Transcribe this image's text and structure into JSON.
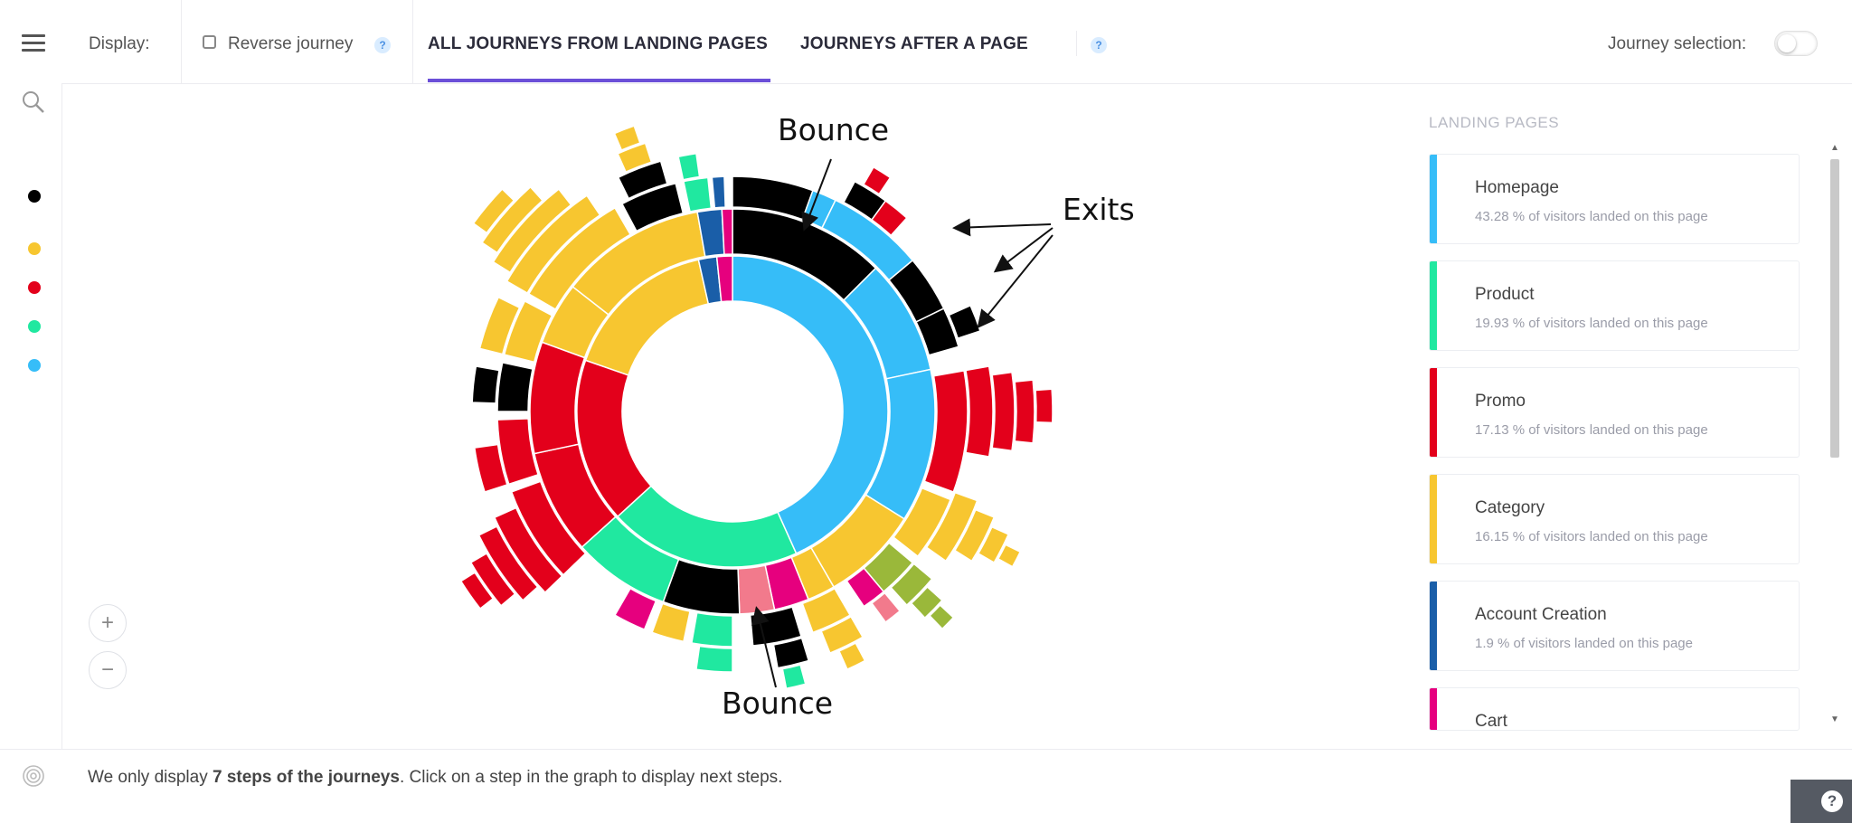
{
  "toolbar": {
    "display_label": "Display:",
    "reverse_label": "Reverse journey",
    "help_glyph": "?",
    "tabs": [
      {
        "label": "ALL JOURNEYS FROM LANDING PAGES",
        "active": true
      },
      {
        "label": "JOURNEYS AFTER A PAGE",
        "active": false
      }
    ],
    "journey_selection_label": "Journey selection:",
    "journey_selection_on": false
  },
  "sidebar": {
    "icons": [
      "menu-icon",
      "search-icon"
    ],
    "legend_dots": [
      "#000000",
      "#f7c630",
      "#e3001b",
      "#20e8a0",
      "#36bdf8"
    ]
  },
  "annotations": {
    "bounce_top": "Bounce",
    "bounce_bottom": "Bounce",
    "exits": "Exits"
  },
  "zoom": {
    "in": "+",
    "out": "−"
  },
  "landing_pages": {
    "title": "LANDING PAGES",
    "items": [
      {
        "name": "Homepage",
        "pct": "43.28 % of visitors landed on this page",
        "color": "#36bdf8"
      },
      {
        "name": "Product",
        "pct": "19.93 % of visitors landed on this page",
        "color": "#20e8a0"
      },
      {
        "name": "Promo",
        "pct": "17.13 % of visitors landed on this page",
        "color": "#e3001b"
      },
      {
        "name": "Category",
        "pct": "16.15 % of visitors landed on this page",
        "color": "#f7c630"
      },
      {
        "name": "Account Creation",
        "pct": "1.9 % of visitors landed on this page",
        "color": "#1a5ea8"
      },
      {
        "name": "Cart",
        "pct": "",
        "color": "#e6007e"
      }
    ]
  },
  "footer": {
    "prefix": "We only display ",
    "bold": "7 steps of the journeys",
    "suffix": ". Click on a step in the graph to display next steps."
  },
  "help_button": "?",
  "chart_data": {
    "type": "sunburst",
    "title": "",
    "root_segments": [
      {
        "name": "Homepage",
        "value": 43.28,
        "color": "#36bdf8"
      },
      {
        "name": "Product",
        "value": 19.93,
        "color": "#20e8a0"
      },
      {
        "name": "Promo",
        "value": 17.13,
        "color": "#e3001b"
      },
      {
        "name": "Category",
        "value": 16.15,
        "color": "#f7c630"
      },
      {
        "name": "Account Creation",
        "value": 1.9,
        "color": "#1a5ea8"
      },
      {
        "name": "Cart",
        "value": 1.61,
        "color": "#e6007e"
      }
    ],
    "steps_shown": 7
  }
}
